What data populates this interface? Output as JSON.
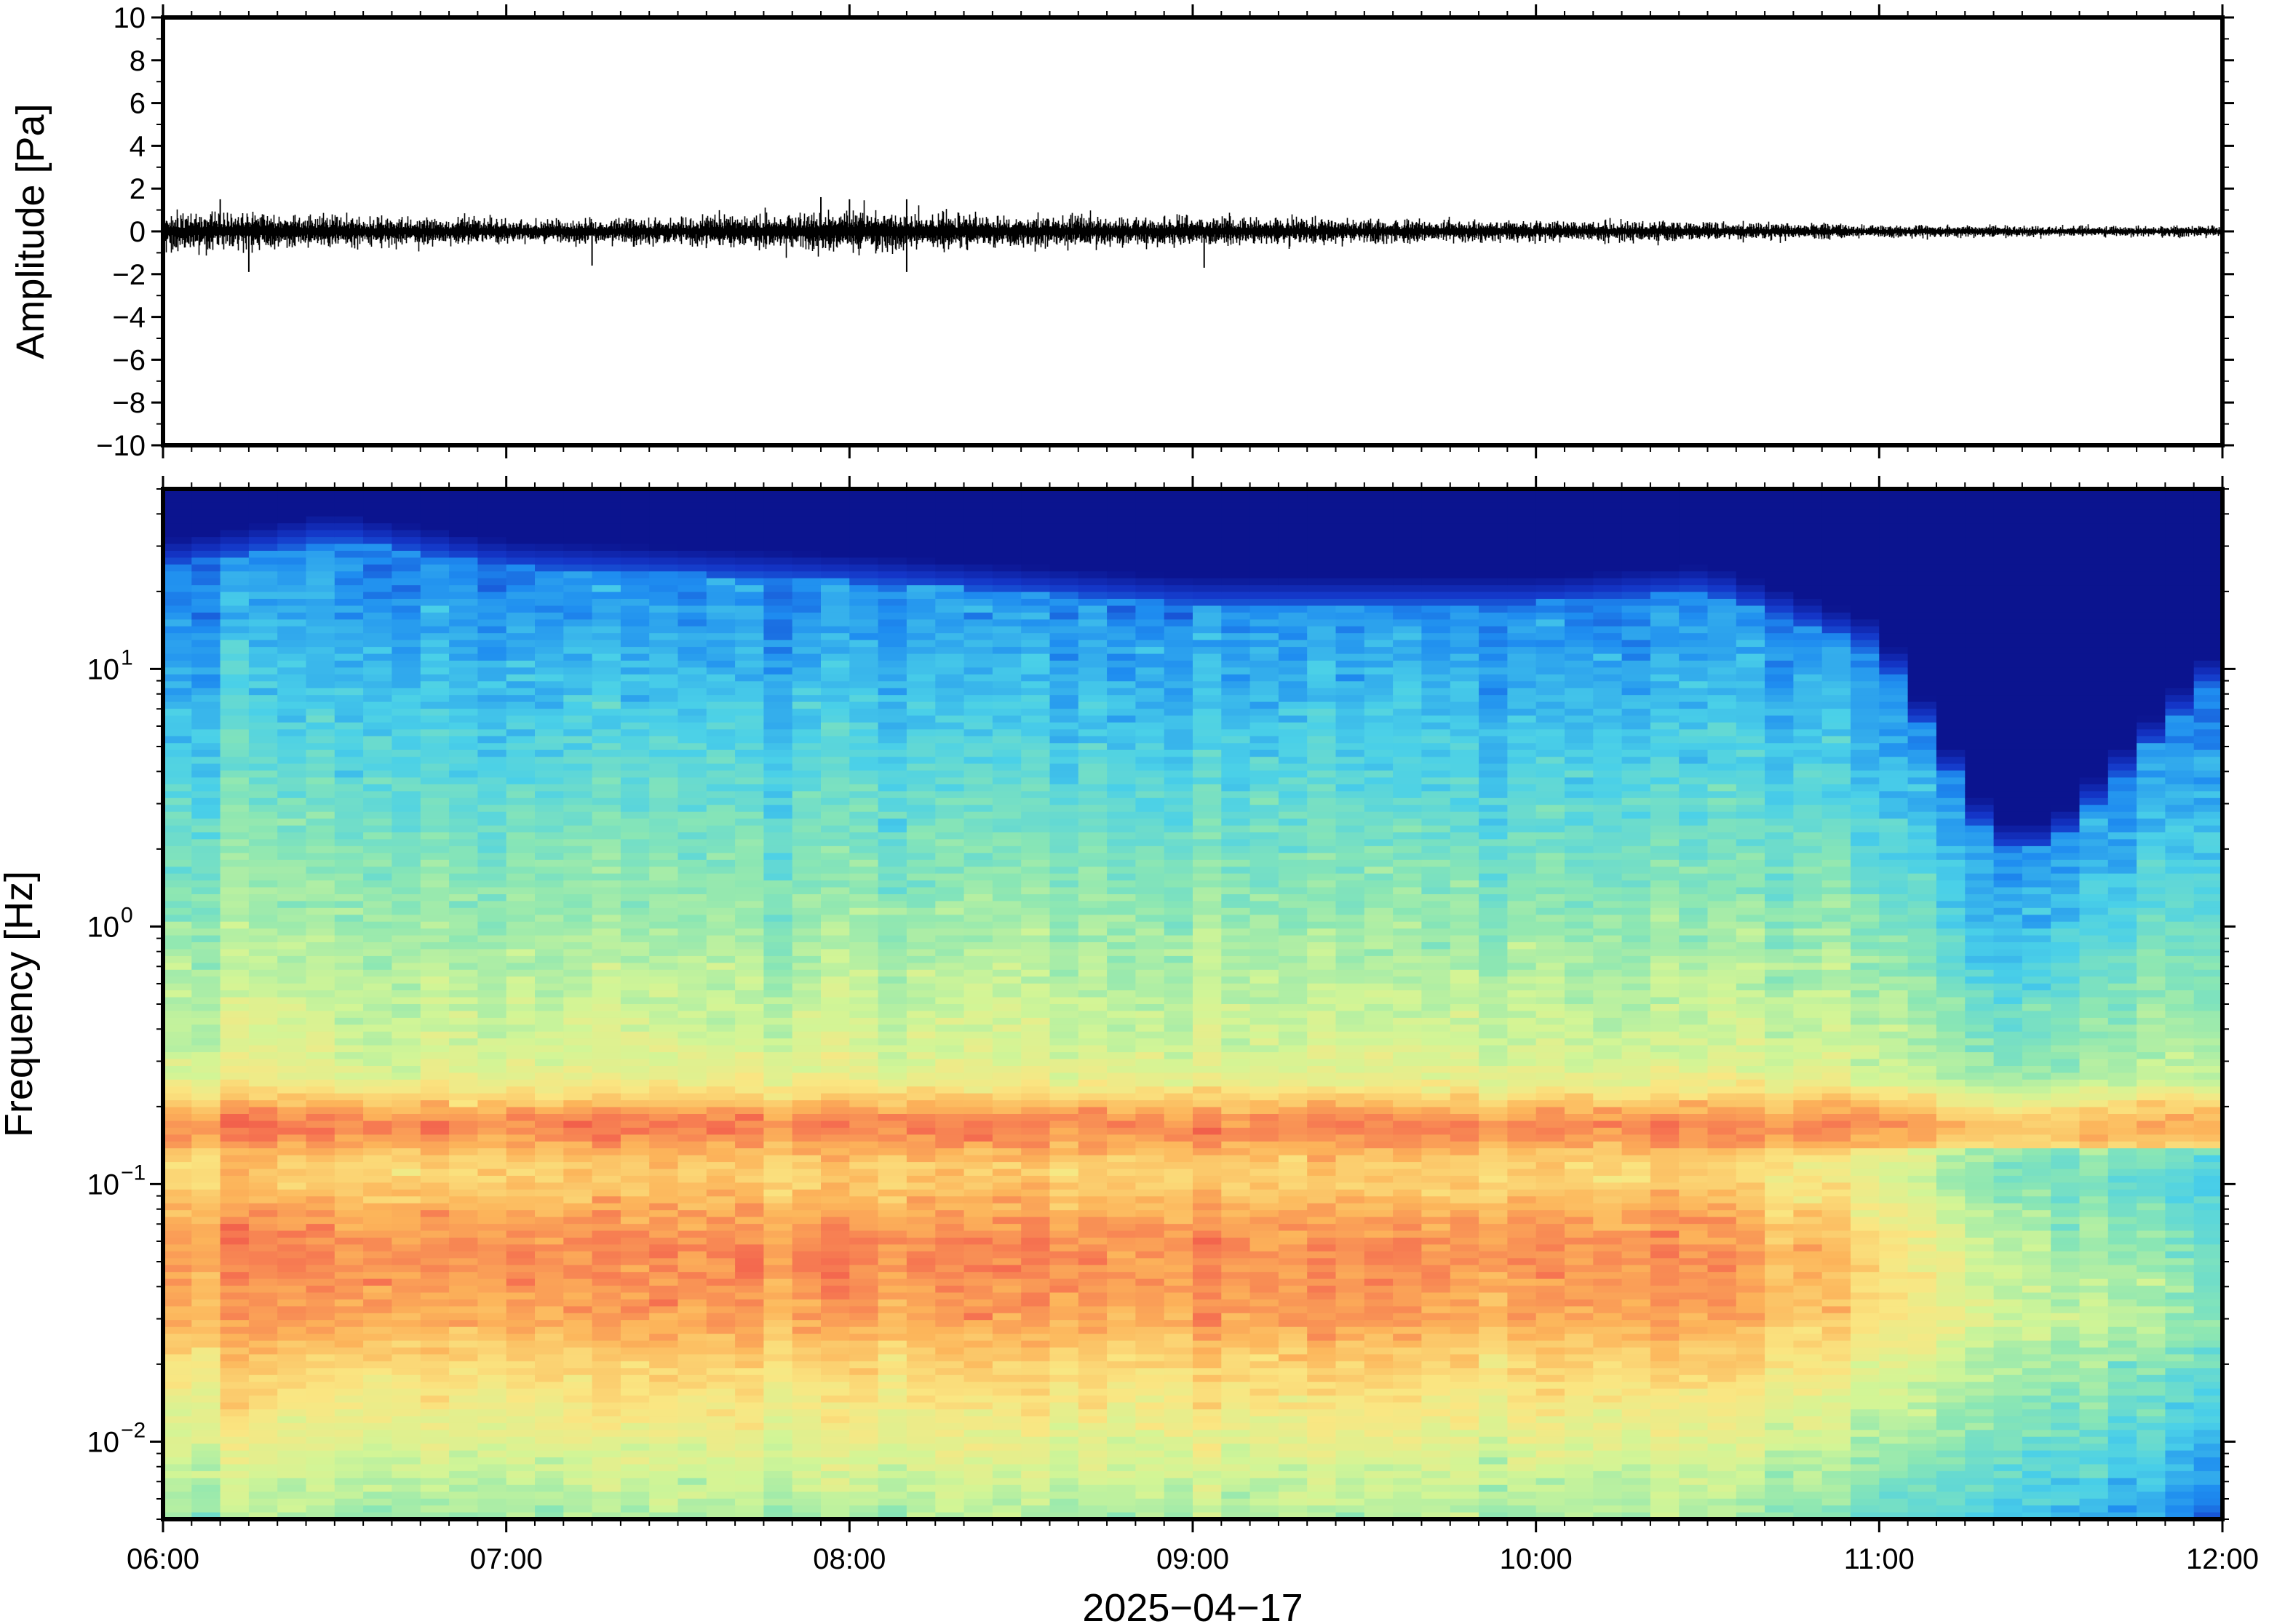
{
  "chart_data": [
    {
      "type": "line",
      "title": "",
      "xlabel": "",
      "ylabel": "Amplitude [Pa]",
      "ylim": [
        -10,
        10
      ],
      "yticks": [
        {
          "value": 10,
          "label": "10"
        },
        {
          "value": 8,
          "label": "8"
        },
        {
          "value": 6,
          "label": "6"
        },
        {
          "value": 4,
          "label": "4"
        },
        {
          "value": 2,
          "label": "2"
        },
        {
          "value": 0,
          "label": "0"
        },
        {
          "value": -2,
          "label": "−2"
        },
        {
          "value": -4,
          "label": "−4"
        },
        {
          "value": -6,
          "label": "−6"
        },
        {
          "value": -8,
          "label": "−8"
        },
        {
          "value": -10,
          "label": "−10"
        }
      ],
      "xlim": [
        "06:00",
        "12:00"
      ],
      "trace_color": "#000000",
      "envelope": {
        "x": [
          "06:00",
          "06:30",
          "07:00",
          "07:30",
          "08:00",
          "08:30",
          "09:00",
          "09:30",
          "10:00",
          "10:30",
          "11:00",
          "11:30",
          "12:00"
        ],
        "max_abs": [
          1.4,
          1.2,
          0.9,
          1.0,
          1.6,
          1.2,
          1.1,
          0.9,
          0.8,
          0.7,
          0.5,
          0.4,
          0.4
        ]
      },
      "spikes": [
        {
          "x": "06:10",
          "y": 1.5
        },
        {
          "x": "06:15",
          "y": -1.9
        },
        {
          "x": "07:15",
          "y": -1.6
        },
        {
          "x": "07:55",
          "y": 1.6
        },
        {
          "x": "08:00",
          "y": 1.5
        },
        {
          "x": "08:10",
          "y": -1.9
        },
        {
          "x": "08:10",
          "y": 1.5
        },
        {
          "x": "09:02",
          "y": -1.7
        }
      ]
    },
    {
      "type": "heatmap",
      "title": "",
      "xlabel": "2025−04−17",
      "ylabel": "Frequency [Hz]",
      "yscale": "log",
      "ylim": [
        0.005,
        50
      ],
      "yticks": [
        {
          "value": 0.01,
          "base": "10",
          "exp": "−2"
        },
        {
          "value": 0.1,
          "base": "10",
          "exp": "−1"
        },
        {
          "value": 1,
          "base": "10",
          "exp": "0"
        },
        {
          "value": 10,
          "base": "10",
          "exp": "1"
        }
      ],
      "x_tick_labels": [
        "06:00",
        "07:00",
        "08:00",
        "09:00",
        "10:00",
        "11:00",
        "12:00"
      ],
      "colormap": [
        "#08087a",
        "#1436c8",
        "#1e8cf0",
        "#4ad0e8",
        "#8ae6b4",
        "#d2f596",
        "#fae682",
        "#fcb45a",
        "#f56e50",
        "#e6323c"
      ],
      "features": {
        "ridge_frequency_hz": 0.17,
        "high_frequency_cutoff_hz": {
          "times": [
            "06:00",
            "06:30",
            "07:00",
            "08:00",
            "09:00",
            "10:00",
            "10:30",
            "11:00",
            "11:20",
            "11:30",
            "12:00"
          ],
          "values": [
            25,
            32,
            25,
            22,
            18,
            18,
            20,
            12,
            2,
            2,
            10
          ]
        }
      }
    }
  ]
}
